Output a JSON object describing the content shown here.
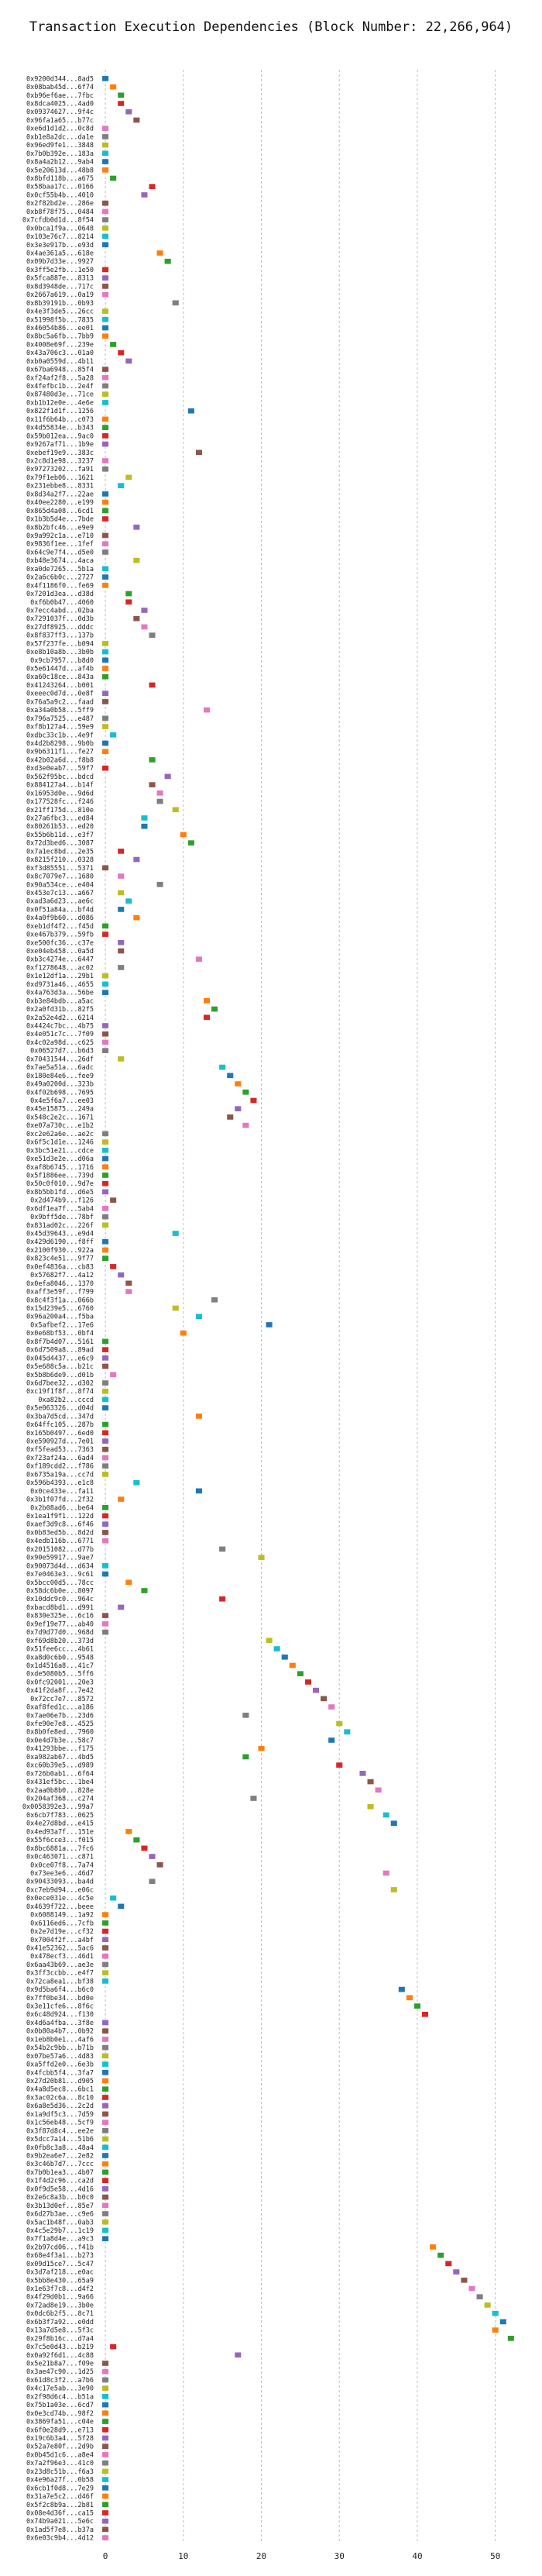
{
  "chart_data": {
    "type": "gantt",
    "title": "Transaction Execution Dependencies (Block Number: 22,266,964)",
    "xlabel": "",
    "ylabel": "",
    "xlim": [
      -1,
      54
    ],
    "xticks": [
      0,
      10,
      20,
      30,
      40,
      50
    ],
    "grid": true,
    "transactions": [
      "0x9200d344...8ad5",
      "0x08bab45d...6f74",
      "0xb96ef6ae...7fbc",
      "0x8dca4025...4ad0",
      "0x09374627...9f4c",
      "0x96fa1a65...b77c",
      "0xe6d1d1d2...0c8d",
      "0xb1e8a2dc...da1e",
      "0x96ed9fe1...3848",
      "0x7b0b392e...183a",
      "0x8a4a2b12...9ab4",
      "0x5e20613d...48b8",
      "0x8bfd118b...a675",
      "0x58baa17c...0166",
      "0x0cf55b4b...4010",
      "0x2f82bd2e...286e",
      "0xb8f78f75...0484",
      "0x7cfdb0d1d...8f54",
      "0x0bca1f9a...0648",
      "0x103e76c7...8214",
      "0x3e3e917b...e93d",
      "0x4ae361a5...618e",
      "0x09b7d33e...9927",
      "0x3ff5e2fb...1e50",
      "0x5fca887e...8313",
      "0x8d3948de...717c",
      "0x2667a619...0a19",
      "0x8b39191b...0b93",
      "0x4e3f3de5...26cc",
      "0x51998f5b...7835",
      "0x46054b86...ee01",
      "0x8bc5a6fb...7bb9",
      "0x4008e69f...239e",
      "0x43a706c3...01a0",
      "0xb0a0559d...4b11",
      "0x67ba6948...85f4",
      "0xf24af2f8...5a28",
      "0x4fefbc1b...2e4f",
      "0x87480d3e...71ce",
      "0xb1b12e0e...4e6e",
      "0x822f1d1f...1256",
      "0x11f6b64b...c073",
      "0x4d55834e...b343",
      "0x59b012ea...9ac0",
      "0x9267af71...1b9e",
      "0xebef19e9...383c",
      "0x2c8d1e98...3237",
      "0x97273202...fa91",
      "0x79f1eb06...1621",
      "0x231ebbe8...8331",
      "0x8d34a2f7...22ae",
      "0x40ee2280...e199",
      "0x865d4a08...6cd1",
      "0x1b3b5d4e...7bde",
      "0x8b2bfc46...e9e9",
      "0x9a992c1a...e710",
      "0x9836f1ee...1fef",
      "0x64c9e7f4...d5e0",
      "0xb48e3674...4aca",
      "0xa0de7265...5b1a",
      "0x2a6c6b0c...2727",
      "0x4f1186f0...fe69",
      "0x7201d3ea...d38d",
      "0xf6b0b47...4060",
      "0x7ecc4abd...02ba",
      "0x7291037f...0d3b",
      "0x27df8925...dddc",
      "0x8f837ff3...137b",
      "0x57f237fe...b094",
      "0xe8b10a8b...3b0b",
      "0x9cb7957...b8d0",
      "0x5e61447d...af4b",
      "0xa60c18ce...843a",
      "0x41243264...b001",
      "0xeeec0d7d...0e8f",
      "0x76a5a9c2...faad",
      "0xa34a0b58...5ff9",
      "0x796a7525...e487",
      "0xf8b127a4...59e9",
      "0xdbc33c1b...4e9f",
      "0x4d2b8298...9b0b",
      "0x9b6311f1...fe27",
      "0x42b02a6d...f8b8",
      "0xd3e0eab7...59f7",
      "0x562f95bc...bdcd",
      "0x884127a4...b14f",
      "0x16953d0e...9d6d",
      "0x177528fc...f246",
      "0x21ff175d...810e",
      "0x27a6fbc3...ed84",
      "0x80261b53...ed20",
      "0x55b6b11d...e3f7",
      "0x72d3bed6...3087",
      "0x7a1ec8bd...2e35",
      "0x8215f210...0328",
      "0xf3d85551...5371",
      "0x8c7079e7...1680",
      "0x90a534ce...e404",
      "0x453e7c13...a667",
      "0xad3a6d23...ae6c",
      "0x0f51a84a...bf4d",
      "0x4a0f9b60...d086",
      "0xeb1df4f2...f45d",
      "0xe467b379...59fb",
      "0xe500fc36...c37e",
      "0xe04eb458...0a5d",
      "0xb3c4274e...6447",
      "0xf1278648...ac02",
      "0x1e12df1a...29b1",
      "0xd9731a46...4655",
      "0x4a763d3a...56be",
      "0xb3e84bdb...a5ac",
      "0x2a0fd31b...82f5",
      "0x2a52e4d2...6214",
      "0x4424c7bc...4b75",
      "0x4e051c7c...7f09",
      "0x4c02a98d...c625",
      "0x06527d7...b6d3",
      "0x70431544...26df",
      "0x7ae5a51a...6adc",
      "0x180e84e6...fee9",
      "0x49a0200d...323b",
      "0x4f02b698...7695",
      "0x4e5f6a7...ee03",
      "0x45e15875...249a",
      "0x548c2e2c...1671",
      "0xe07a730c...e1b2",
      "0xc2e62a6e...ae2c",
      "0x6f5c1d1e...1246",
      "0x3bc51e21...cdce",
      "0xe51d3e2e...d06a",
      "0xaf8b6745...1716",
      "0x5f1886ee...739d",
      "0x50c0f010...9d7e",
      "0x8b5bb1fd...d6e5",
      "0x2d474b9...f126",
      "0x6df1ea7f...5ab4",
      "0x9bff5de...78bf",
      "0x831ad02c...226f",
      "0x45d39643...e9d4",
      "0x429d6190...f8ff",
      "0x2100f930...922a",
      "0x823c4e51...9f77",
      "0x0ef4836a...cb83",
      "0x57682f7...4a12",
      "0x0efa8046...1370",
      "0xaff3e59f...f799",
      "0x8c4f3f1a...066b",
      "0x15d239e5...6760",
      "0x96a200a4...f5ba",
      "0x5afbef2...17e6",
      "0x0e68bf53...0bf4",
      "0x8f7b4d07...5161",
      "0x6d7509a8...89ad",
      "0x045d4437...e6c9",
      "0x5e688c5a...b21c",
      "0x5b8b6de9...d01b",
      "0x6d7bee32...d302",
      "0xc19f1f8f...8f74",
      "0xa82b2...cccd",
      "0x5e063326...d04d",
      "0x3ba7d5cd...347d",
      "0x64ffc105...287b",
      "0x165b0497...6ed0",
      "0xe590927d...7e01",
      "0xf5fead53...7363",
      "0x723af24a...6ad4",
      "0xf189cdd2...f786",
      "0x6735a19a...cc7d",
      "0x596b4393...e1c8",
      "0x0ce433e...fa11",
      "0x3b1f07fd...2f32",
      "0x2b08ad6...be64",
      "0x1ea1f9f1...122d",
      "0xaef3d9c8...6f46",
      "0x0b83ed5b...8d2d",
      "0x4edb116b...6771",
      "0x20151082...d77b",
      "0x90e59917...9ae7",
      "0x90073d4d...d634",
      "0x7e0463e3...9c61",
      "0x5bcc00d5...78cc",
      "0x58dc6b0e...8097",
      "0x10ddc9c0...964c",
      "0xbacd8bd1...d991",
      "0x830e325e...6c16",
      "0x9ef19e77...ab40",
      "0x7d9d77d0...968d",
      "0xf69d8b20...373d",
      "0x51fee6cc...4b61",
      "0xa8d0c6b0...9548",
      "0x1d4516a8...41c7",
      "0xde5080b5...5ff6",
      "0x0fc92001...20e3",
      "0x41f2da8f...7e42",
      "0x72cc7e7...8572",
      "0xaf8fed1c...a186",
      "0x7ae06e7b...23d6",
      "0xfe90e7e8...4525",
      "0x8b0fe8ed...7960",
      "0x0e4d7b3e...58c7",
      "0x41293bbe...f175",
      "0xa982ab67...4bd5",
      "0xc60b39e5...d989",
      "0x726b0ab1...6f64",
      "0x431ef5bc...1be4",
      "0x2aa0b8b0...828e",
      "0x204af368...c274",
      "0x0058392e3...99a7",
      "0x6cb7f783...0625",
      "0x4e27d8bd...e415",
      "0x4ed93a7f...151e",
      "0x55f6cce3...f015",
      "0x8bc6881a...7fc6",
      "0x0c463071...c871",
      "0x0ce07f8...7a74",
      "0x73ee3e6...46d7",
      "0x90433093...ba4d",
      "0xc7eb9d94...e06c",
      "0x0ece031e...4c5e",
      "0x4639f722...beee",
      "0x6088149...1a92",
      "0x6116ed6...7cfb",
      "0x2e7d19e...cf32",
      "0x7004f2f...a4bf",
      "0x41e52362...5ac6",
      "0x478ecf3...46d1",
      "0x6aa43b69...ae3e",
      "0x3ff3ccbb...e4f7",
      "0x72ca8ea1...bf38",
      "0x9d5ba6f4...b6c0",
      "0x7ff0be34...bd0e",
      "0x3e11cfe6...8f6c",
      "0x6c48d924...f130",
      "0x4d6a4fba...3f8e",
      "0x0b80a4b7...0b92",
      "0x1eb8b0e1...4af6",
      "0x54b2c9bb...b71b",
      "0x07be57a6...4d83",
      "0xa5ffd2e0...6e3b",
      "0x4fcbb5f4...3fa7",
      "0x27d20b81...d905",
      "0x4a8d5ec8...6bc1",
      "0x3ac02c6a...8c10",
      "0x6a8e5d36...2c2d",
      "0x1a9df5c3...7d59",
      "0x1c56eb48...5cf9",
      "0x3f87d8c4...ee2e",
      "0x5dcc7a14...51b6",
      "0x0fb8c3a8...48a4",
      "0x9b2ea6e7...2e82",
      "0x3c46b7d7...7ccc",
      "0x7b0b1ea3...4b07",
      "0x1f4d2c96...ca2d",
      "0x0f9d5e58...4d16",
      "0x2e6c8a3b...b0c0",
      "0x3b13d0ef...85e7",
      "0x6d27b3ae...c9e6",
      "0x5ac1b48f...0ab3",
      "0x4c5e29b7...1c19",
      "0x7f1a8d4e...a9c3",
      "0x2b97cd06...f41b",
      "0x68e4f3a1...b273",
      "0x09d15ce7...5c47",
      "0x3d7af218...e0ac",
      "0x5bb8e430...65a9",
      "0x1e63f7c8...d4f2",
      "0x4f29d0b1...9a66",
      "0x72ad8e19...3b0e",
      "0x0dc6b2f5...8c71",
      "0x6b3f7a92...e0dd",
      "0x13a7d5e8...5f3c",
      "0x29f8b16c...d7a4",
      "0x7c5e0d43...b219",
      "0x0a92f6d1...4c88",
      "0x5e21b8a7...f09e",
      "0x3ae47c90...1d25",
      "0x61d8c3f2...a7b6",
      "0x4c17e5ab...3e90",
      "0x2f98d6c4...b51a",
      "0x75b1a03e...6cd7",
      "0x0e3cd74b...98f2",
      "0x3869fa51...c04e",
      "0x6f0e28d9...e713",
      "0x19c6b3a4...5f28",
      "0x52a7e80f...2d9b",
      "0x0b45d1c6...a8e4",
      "0x7a2f96e3...41c0",
      "0x23d8c51b...f6a3",
      "0x4e96a27f...0b58",
      "0x6cb1f0d8...7e29",
      "0x31a7e5c2...d46f",
      "0x5f2c8b9a...2b81",
      "0x08e4d36f...ca15",
      "0x74b9a021...5e6c",
      "0x1ad5f7e8...b37a",
      "0x6e03c9b4...4d12"
    ],
    "start": [
      0,
      1,
      2,
      2,
      3,
      4,
      0,
      0,
      0,
      0,
      0,
      0,
      1,
      6,
      5,
      0,
      0,
      0,
      0,
      0,
      0,
      7,
      8,
      0,
      0,
      0,
      0,
      9,
      0,
      0,
      0,
      0,
      1,
      2,
      3,
      0,
      0,
      0,
      0,
      0,
      11,
      0,
      0,
      0,
      0,
      12,
      0,
      0,
      3,
      2,
      0,
      0,
      0,
      0,
      4,
      0,
      0,
      0,
      4,
      0,
      0,
      0,
      3,
      3,
      5,
      4,
      5,
      6,
      0,
      0,
      0,
      0,
      0,
      6,
      0,
      0,
      13,
      0,
      0,
      1,
      0,
      0,
      6,
      0,
      8,
      6,
      7,
      7,
      9,
      5,
      5,
      10,
      11,
      2,
      4,
      0,
      2,
      7,
      2,
      3,
      2,
      4,
      0,
      0,
      2,
      2,
      12,
      2,
      0,
      0,
      0,
      13,
      14,
      13,
      0,
      0,
      0,
      0,
      2,
      15,
      16,
      17,
      18,
      19,
      17,
      16,
      18,
      0,
      0,
      0,
      0,
      0,
      0,
      0,
      0,
      1,
      0,
      0,
      0,
      9,
      0,
      0,
      0,
      1,
      2,
      3,
      3,
      14,
      9,
      12,
      21,
      10,
      0,
      0,
      0,
      0,
      1,
      0,
      0,
      0,
      0,
      12,
      0,
      0,
      0,
      0,
      0,
      0,
      0,
      4,
      12,
      2,
      0,
      0,
      0,
      0,
      0,
      15,
      20,
      0,
      0,
      3,
      5,
      15,
      2,
      0,
      0,
      0,
      21,
      22,
      23,
      24,
      25,
      26,
      27,
      28,
      29,
      18,
      30,
      31,
      29,
      20,
      18,
      30,
      33,
      34,
      35,
      19,
      34,
      36,
      37,
      3,
      4,
      5,
      6,
      7,
      36,
      6,
      37,
      1,
      2,
      0,
      0,
      0,
      0,
      0,
      0,
      0,
      0,
      0,
      38,
      39,
      40,
      41,
      0,
      0,
      0,
      0,
      0,
      0,
      0,
      0,
      0,
      0,
      0,
      0,
      0,
      0,
      0,
      0,
      0,
      0,
      0,
      0,
      0,
      0,
      0,
      0,
      0,
      0,
      0,
      42,
      43,
      44,
      45,
      46,
      47,
      48,
      49,
      50,
      51,
      50,
      52,
      1,
      17,
      0,
      0,
      0,
      0,
      0,
      0,
      0,
      0,
      0,
      0,
      0,
      0,
      0,
      0,
      0,
      0,
      0,
      0,
      0,
      0,
      0,
      0,
      0,
      0
    ],
    "colors": [
      "#1f77b4",
      "#ff7f0e",
      "#2ca02c",
      "#d62728",
      "#9467bd",
      "#8c564b",
      "#e377c2",
      "#7f7f7f",
      "#bcbd22",
      "#17becf"
    ]
  }
}
